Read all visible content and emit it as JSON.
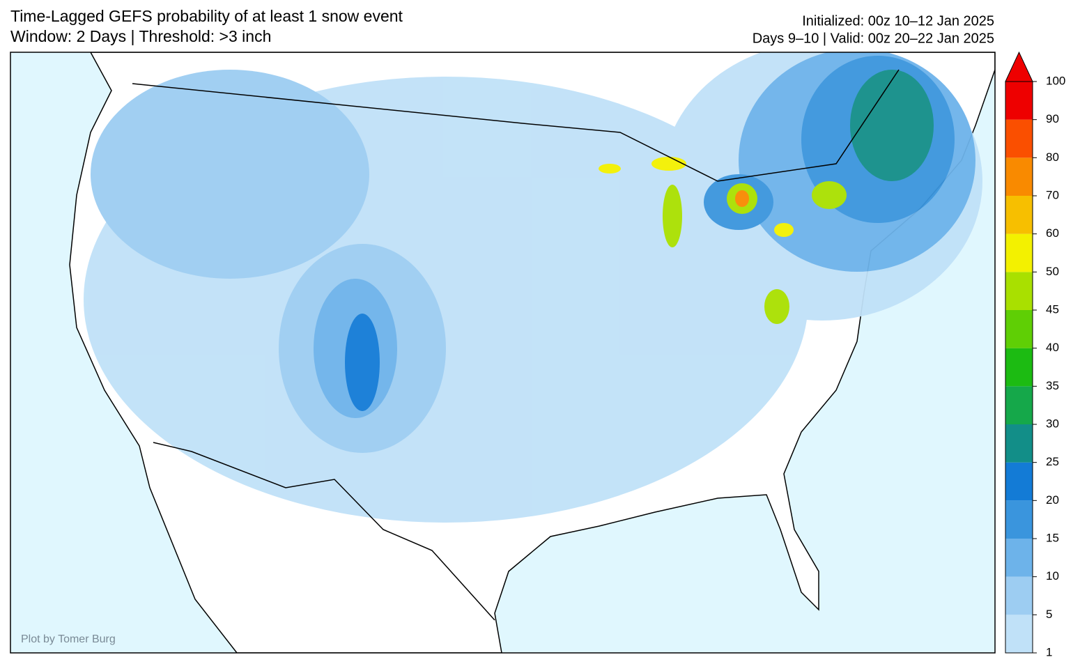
{
  "header": {
    "title": "Time-Lagged GEFS probability of at least 1 snow event",
    "subtitle": "Window: 2 Days | Threshold: >3 inch",
    "initialized": "Initialized: 00z 10–12 Jan 2025",
    "valid": "Days 9–10 | Valid: 00z 20–22 Jan 2025"
  },
  "colorbar": {
    "levels": [
      1,
      5,
      10,
      15,
      20,
      25,
      30,
      35,
      40,
      45,
      50,
      60,
      70,
      80,
      90,
      100
    ],
    "colors": [
      "#c0e1f8",
      "#9dcdf2",
      "#6db3ea",
      "#3a95dd",
      "#137bd6",
      "#128e88",
      "#15a84a",
      "#1cbb12",
      "#5fcf05",
      "#a9e000",
      "#f3f100",
      "#f7bf00",
      "#f98a00",
      "#fa4f00",
      "#ee0000"
    ],
    "extend_color": "#ee0000"
  },
  "credit": "Plot by Tomer Burg"
}
